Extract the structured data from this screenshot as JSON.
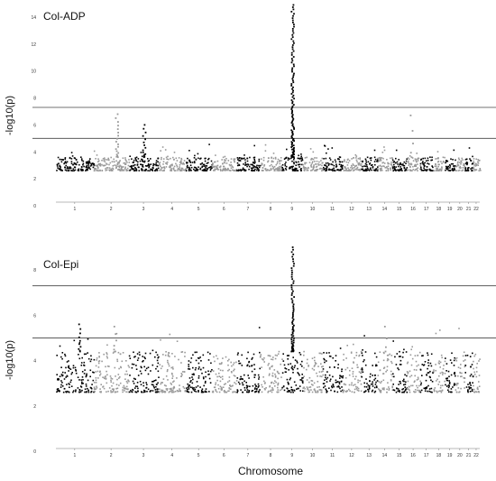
{
  "chart_data": {
    "xlabel": "Chromosome",
    "ylabel": "-log10(p)",
    "palette": [
      "#000000",
      "#999999"
    ],
    "chromosomes": [
      "1",
      "2",
      "3",
      "4",
      "5",
      "6",
      "7",
      "8",
      "9",
      "10",
      "11",
      "12",
      "13",
      "14",
      "15",
      "16",
      "17",
      "18",
      "19",
      "20",
      "21",
      "22"
    ],
    "panels": [
      {
        "type": "scatter",
        "title": "Col-ADP",
        "ylim": [
          0,
          15
        ],
        "yticks": [
          0,
          2,
          4,
          6,
          8,
          10,
          12,
          14
        ],
        "thresholds": [
          5,
          7.3
        ],
        "baseline": [
          2.6,
          3.6
        ],
        "peaks": [
          {
            "chromosome": "9",
            "pos": 0.5,
            "max": 14.9,
            "n": 110
          },
          {
            "chromosome": "2",
            "pos": 0.65,
            "max": 6.8,
            "n": 18
          },
          {
            "chromosome": "3",
            "pos": 0.5,
            "max": 6.0,
            "n": 14
          },
          {
            "chromosome": "16",
            "pos": 0.35,
            "max": 6.7,
            "n": 5
          }
        ]
      },
      {
        "type": "scatter",
        "title": "Col-Epi",
        "ylim": [
          0,
          9
        ],
        "yticks": [
          0,
          2,
          4,
          6,
          8
        ],
        "thresholds": [
          5,
          7.3
        ],
        "baseline": [
          2.6,
          4.4
        ],
        "peaks": [
          {
            "chromosome": "9",
            "pos": 0.5,
            "max": 9.0,
            "n": 70
          },
          {
            "chromosome": "1",
            "pos": 0.6,
            "max": 5.6,
            "n": 10
          },
          {
            "chromosome": "14",
            "pos": 0.5,
            "max": 5.5,
            "n": 4
          },
          {
            "chromosome": "2",
            "pos": 0.6,
            "max": 5.5,
            "n": 6
          }
        ]
      }
    ]
  }
}
